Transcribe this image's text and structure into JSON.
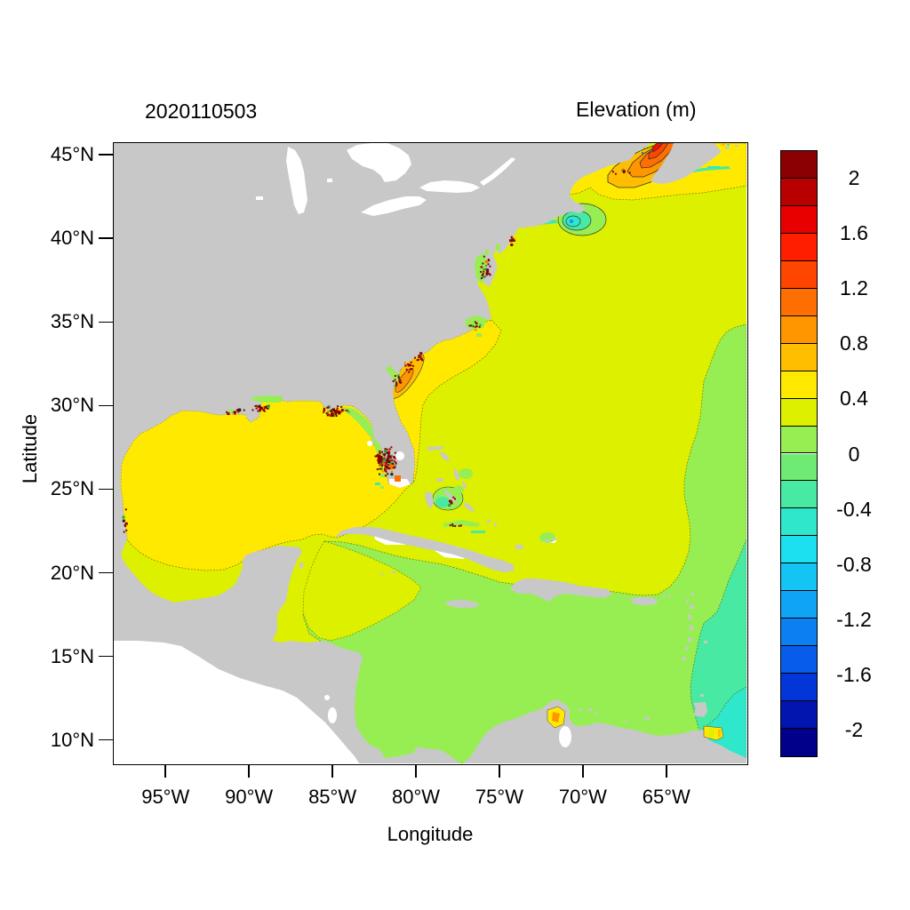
{
  "figure": {
    "title": "2020110503",
    "colorbar_title": "Elevation (m)",
    "xlabel": "Longitude",
    "ylabel": "Latitude"
  },
  "axes": {
    "lon_min": -98.1,
    "lon_max": -60.2,
    "lat_min": 8.6,
    "lat_max": 45.7,
    "x_ticks": [
      {
        "label": "95°W",
        "value": -95
      },
      {
        "label": "90°W",
        "value": -90
      },
      {
        "label": "85°W",
        "value": -85
      },
      {
        "label": "80°W",
        "value": -80
      },
      {
        "label": "75°W",
        "value": -75
      },
      {
        "label": "70°W",
        "value": -70
      },
      {
        "label": "65°W",
        "value": -65
      }
    ],
    "y_ticks": [
      {
        "label": "45°N",
        "value": 45
      },
      {
        "label": "40°N",
        "value": 40
      },
      {
        "label": "35°N",
        "value": 35
      },
      {
        "label": "30°N",
        "value": 30
      },
      {
        "label": "25°N",
        "value": 25
      },
      {
        "label": "20°N",
        "value": 20
      },
      {
        "label": "15°N",
        "value": 15
      },
      {
        "label": "10°N",
        "value": 10
      }
    ]
  },
  "colorbar": {
    "min": -2.2,
    "max": 2.2,
    "step": 0.2,
    "ticks": [
      {
        "label": "2",
        "value": 2
      },
      {
        "label": "1.6",
        "value": 1.6
      },
      {
        "label": "1.2",
        "value": 1.2
      },
      {
        "label": "0.8",
        "value": 0.8
      },
      {
        "label": "0.4",
        "value": 0.4
      },
      {
        "label": "0",
        "value": 0
      },
      {
        "label": "-0.4",
        "value": -0.4
      },
      {
        "label": "-0.8",
        "value": -0.8
      },
      {
        "label": "-1.2",
        "value": -1.2
      },
      {
        "label": "-1.6",
        "value": -1.6
      },
      {
        "label": "-2",
        "value": -2
      }
    ],
    "colors_top_to_bottom": [
      "#8B0000",
      "#B80000",
      "#E80000",
      "#FF1E00",
      "#FF4600",
      "#FF6E00",
      "#FF9600",
      "#FFBE00",
      "#FFE900",
      "#DCF000",
      "#97EE52",
      "#6FEB74",
      "#48E9A2",
      "#2FE8CC",
      "#1CE0F0",
      "#14C4F4",
      "#0FA4F6",
      "#0B80F0",
      "#075CEA",
      "#0336D8",
      "#0116AE",
      "#00008B"
    ]
  },
  "palette": {
    "land": "#C8C8C8",
    "outside_domain": "#FFFFFF",
    "yellow": "#FFE900",
    "chartreuse": "#DCF000",
    "green": "#97EE52",
    "teal": "#48E9A2",
    "cyan": "#2FE8CC",
    "o08": "#FFBE00",
    "o10": "#FF9600",
    "o12": "#FF6E00",
    "r14": "#FF4600",
    "r16": "#EE1500",
    "darkred": "#8B0000",
    "contour": "#4A4A00"
  },
  "chart_data": {
    "type": "heatmap",
    "subtype": "filled-contour-geographic-map",
    "title": "2020110503",
    "colorbar_label": "Elevation (m)",
    "xlabel": "Longitude",
    "ylabel": "Latitude",
    "lon_range_deg": [
      -98.1,
      -60.2
    ],
    "lat_range_deg": [
      8.6,
      45.7
    ],
    "contour_interval_m": 0.2,
    "color_scale_range_m": [
      -2.2,
      2.2
    ],
    "regions": [
      {
        "name": "Gulf of Mexico",
        "elevation_m": "0.4 to 0.6"
      },
      {
        "name": "Western Atlantic shelf and open ocean",
        "elevation_m": "0.2 to 0.4"
      },
      {
        "name": "Caribbean Sea and southeastern Atlantic",
        "elevation_m": "0 to 0.2"
      },
      {
        "name": "Atlantic east of Lesser Antilles",
        "elevation_m": "-0.2 to -0.4"
      },
      {
        "name": "Southeast corner near Trinidad",
        "elevation_m": "-0.4 to -0.6"
      },
      {
        "name": "Gulf of Maine / Bay of Fundy high",
        "elevation_m": "0.6 to 1.6"
      },
      {
        "name": "Nantucket Shoals low",
        "elevation_m": "-0.2 to -0.6"
      },
      {
        "name": "Georgia / South Carolina coastal band",
        "elevation_m": "0.6 to 1.0"
      },
      {
        "name": "Southwest Florida wet cells",
        "elevation_m": "greater than 2"
      },
      {
        "name": "Land",
        "note": "gray"
      },
      {
        "name": "Pacific side outside model domain",
        "note": "white"
      }
    ]
  }
}
